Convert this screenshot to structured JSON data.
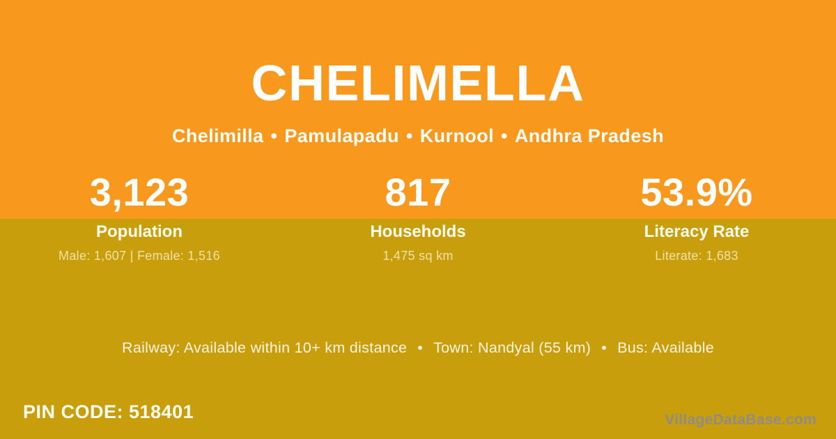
{
  "colors": {
    "band_top_orange": "#F8981D",
    "band_bottom_gold": "#C99E0D",
    "primary_text": "#FFFFFF",
    "detail_text_pale_yellow": "#F0E2A4",
    "facilities_text_cream": "#FBF4DE",
    "watermark_gray": "#8D8D85"
  },
  "header": {
    "title": "CHELIMELLA",
    "separator": "•",
    "location": {
      "village": "Chelimilla",
      "mandal": "Pamulapadu",
      "district": "Kurnool",
      "state": "Andhra Pradesh"
    }
  },
  "stats": {
    "items": [
      {
        "value": "3,123",
        "label": "Population",
        "detail": "Male: 1,607 | Female: 1,516"
      },
      {
        "value": "817",
        "label": "Households",
        "detail": "1,475 sq km"
      },
      {
        "value": "53.9%",
        "label": "Literacy Rate",
        "detail": "Literate: 1,683"
      }
    ]
  },
  "facilities": {
    "separator": "•",
    "items": [
      "Railway: Available within 10+ km distance",
      "Town: Nandyal (55 km)",
      "Bus: Available"
    ]
  },
  "footer": {
    "pin_text": "PIN CODE: 518401",
    "watermark": "VillageDataBase.com"
  }
}
